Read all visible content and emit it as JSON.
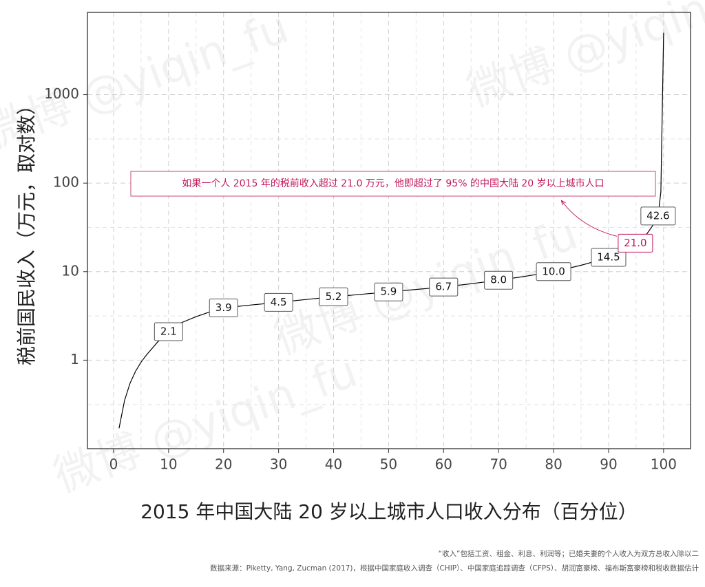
{
  "chart_data": {
    "type": "line",
    "x_label": "2015 年中国大陆 20 岁以上城市人口收入分布（百分位）",
    "y_label": "税前国民收入（万元，取对数）",
    "x": [
      1,
      2,
      3,
      4,
      5,
      6,
      8,
      10,
      12,
      15,
      18,
      20,
      25,
      30,
      35,
      40,
      45,
      50,
      55,
      60,
      65,
      70,
      75,
      80,
      85,
      88,
      90,
      92,
      95,
      97,
      98,
      99,
      99.5,
      100
    ],
    "values": [
      0.17,
      0.35,
      0.55,
      0.75,
      0.95,
      1.15,
      1.6,
      2.1,
      2.6,
      3.1,
      3.6,
      3.9,
      4.2,
      4.5,
      4.85,
      5.2,
      5.55,
      5.9,
      6.3,
      6.7,
      7.3,
      8.0,
      8.9,
      10.0,
      11.8,
      13.3,
      14.5,
      16.2,
      21.0,
      27,
      33,
      42.6,
      80,
      5000
    ],
    "color": "#000000",
    "point_labels": {
      "x": [
        10,
        20,
        30,
        40,
        50,
        60,
        70,
        80,
        90,
        99
      ],
      "values": [
        2.1,
        3.9,
        4.5,
        5.2,
        5.9,
        6.7,
        8.0,
        10.0,
        14.5,
        42.6
      ],
      "value_labels": [
        "2.1",
        "3.9",
        "4.5",
        "5.2",
        "5.9",
        "6.7",
        "8.0",
        "10.0",
        "14.5",
        "42.6"
      ]
    },
    "highlight": {
      "x": 95,
      "value": 21.0,
      "value_label": "21.0",
      "color": "#c2185b"
    },
    "annotation": {
      "text": "如果一个人 2015 年的税前收入超过 21.0 万元，他即超过了 95% 的中国大陆 20 岁以上城市人口",
      "color": "#c2185b"
    },
    "xlim": [
      -4.75,
      104.9
    ],
    "ylim": [
      0.1,
      8500
    ],
    "xticks": [
      0,
      10,
      20,
      30,
      40,
      50,
      60,
      70,
      80,
      90,
      100
    ],
    "yticks": [
      1,
      10,
      100,
      1000
    ],
    "y_log": true,
    "grid": true,
    "notes": [
      "“收入”包括工资、租金、利息、利润等；已婚夫妻的个人收入为双方总收入除以二",
      "数据来源：Piketty, Yang, Zucman (2017)，根据中国家庭收入调查（CHIP）、中国家庭追踪调查（CFPS）、胡润富豪榜、福布斯富豪榜和税收数据估计"
    ],
    "watermark": "微博 @yiqin_fu"
  }
}
